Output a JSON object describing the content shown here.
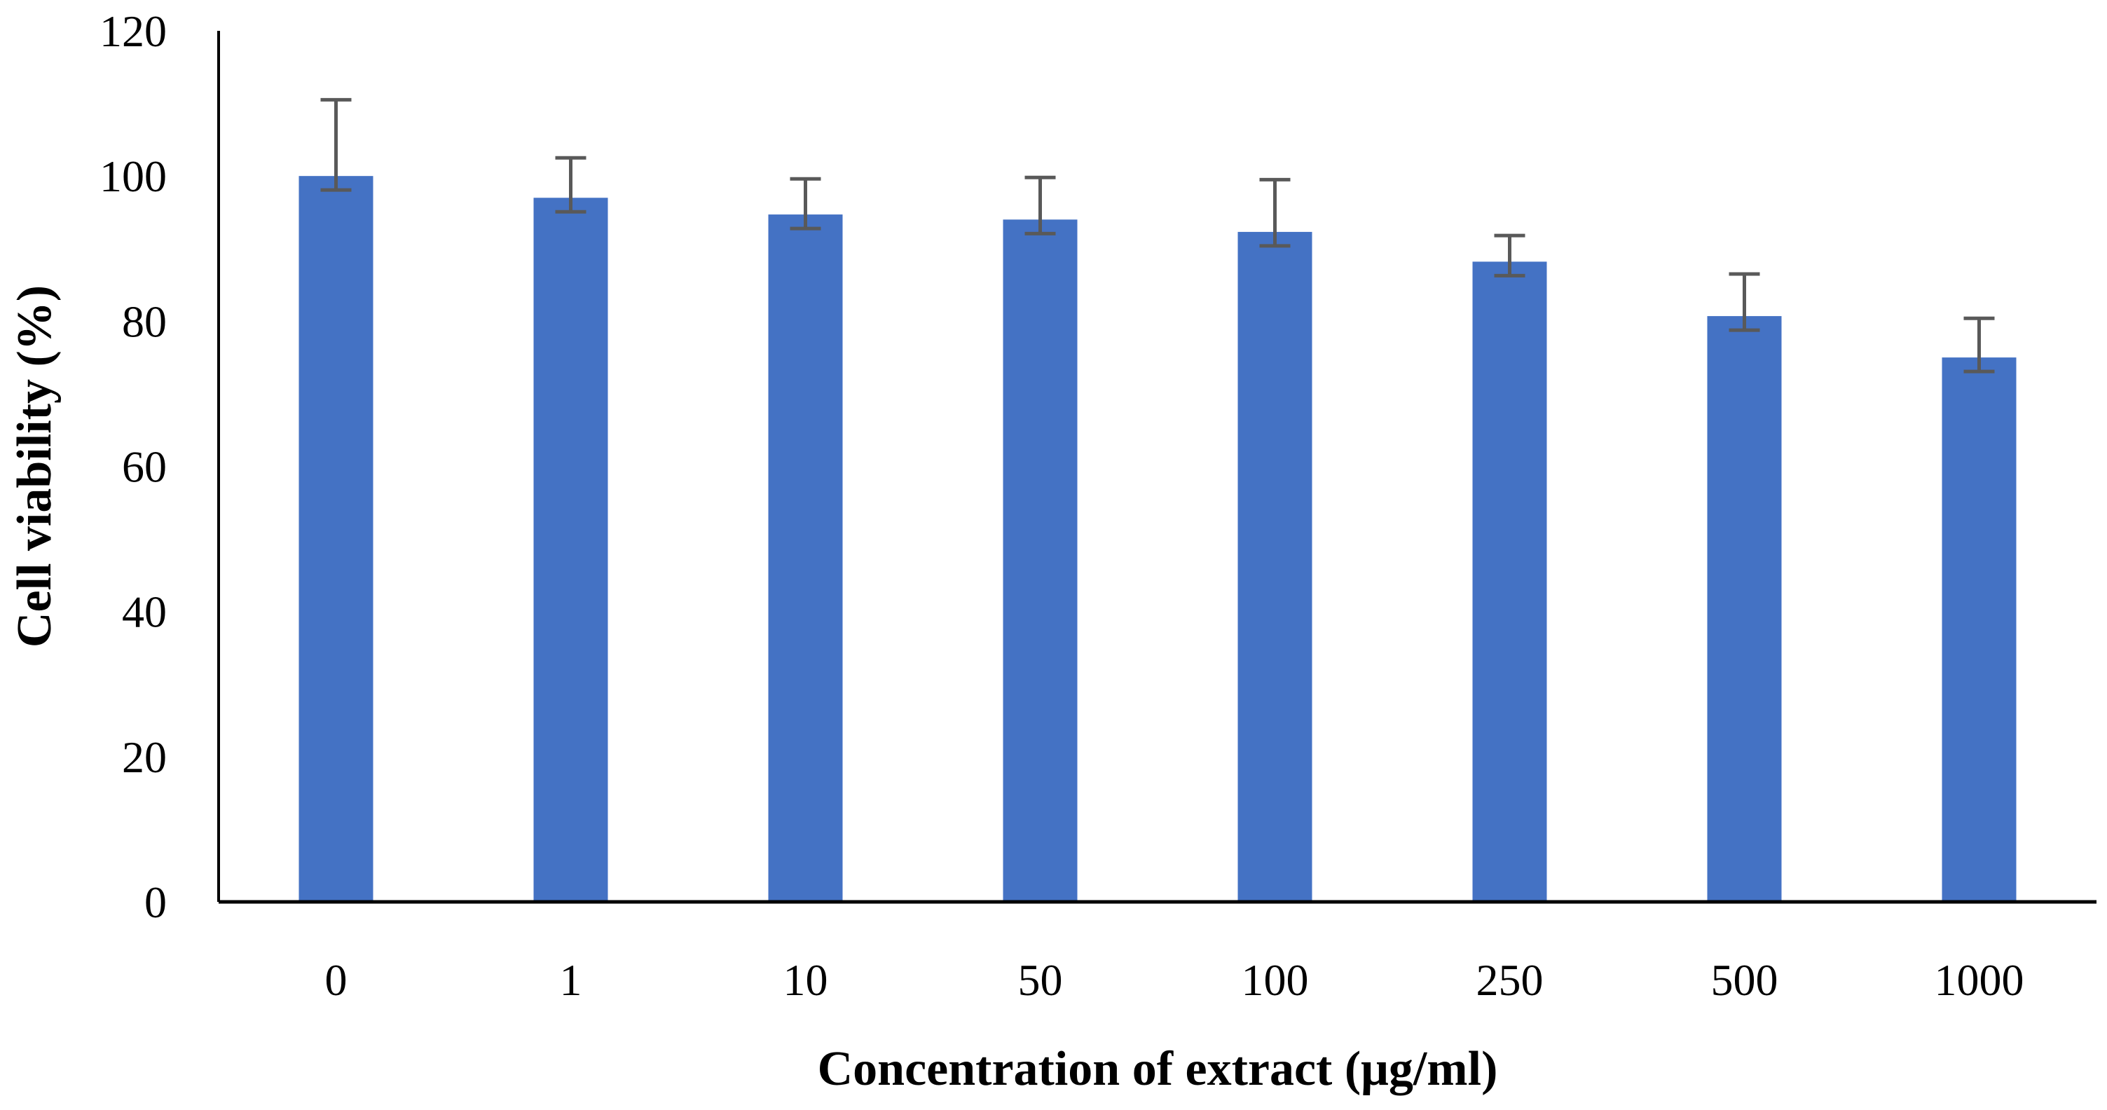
{
  "chart_data": {
    "type": "bar",
    "title": "",
    "xlabel": "Concentration of extract (μg/ml)",
    "ylabel": "Cell viability (%)",
    "categories": [
      "0",
      "1",
      "10",
      "50",
      "100",
      "250",
      "500",
      "1000"
    ],
    "values": [
      100,
      97,
      94.7,
      94,
      92.3,
      88.2,
      80.7,
      75
    ],
    "error_upper": [
      10.5,
      5.5,
      4.9,
      5.8,
      7.2,
      3.6,
      5.8,
      5.4
    ],
    "y_ticks": [
      0,
      20,
      40,
      60,
      80,
      100,
      120
    ],
    "ylim": [
      0,
      120
    ],
    "grid": false,
    "legend": "none",
    "colors": {
      "bar": "#4472C4",
      "error_bar": "#595959",
      "axis": "#000000"
    }
  }
}
